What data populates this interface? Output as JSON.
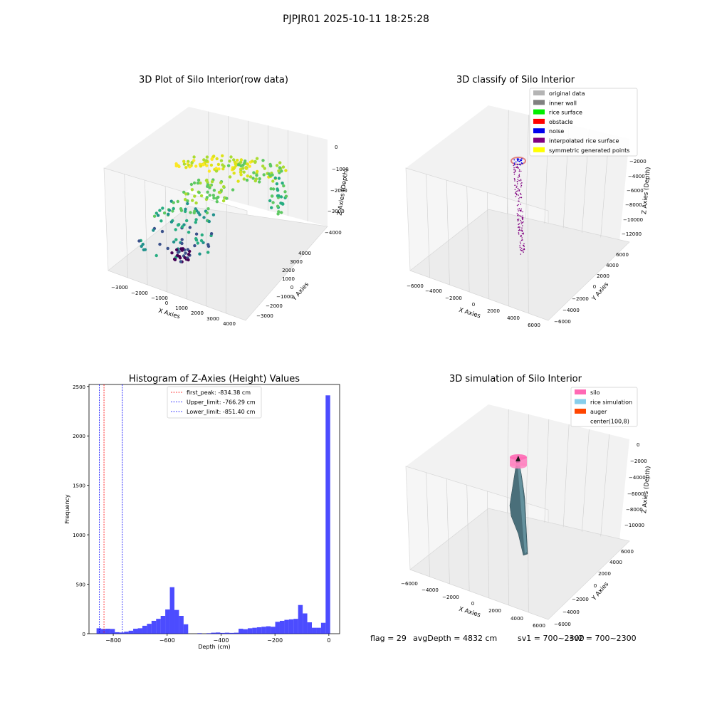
{
  "figure": {
    "suptitle": "PJPJR01 2025-10-11 18:25:28",
    "status": {
      "flag": "flag = 29",
      "avg": "avgDepth = 4832 cm",
      "sv1": "sv1 = 700~2300",
      "sv2": "sv2 = 700~2300"
    }
  },
  "panels": {
    "raw": {
      "title": "3D Plot of Silo Interior(row data)",
      "xlabel": "X Axies",
      "ylabel": "Y Axies",
      "zlabel": "Z Axies (Depth)",
      "xticks": [
        "−3000",
        "−2000",
        "−1000",
        "0",
        "1000",
        "2000",
        "3000",
        "4000"
      ],
      "yticks": [
        "−3000",
        "−2000",
        "−1000",
        "0",
        "1000",
        "2000",
        "3000",
        "4000"
      ],
      "zticks": [
        "0",
        "−1000",
        "−2000",
        "−3000",
        "−4000"
      ]
    },
    "classify": {
      "title": "3D classify of Silo Interior",
      "xlabel": "X Axies",
      "ylabel": "Y Axies",
      "zlabel": "Z Axies (Depth)",
      "xticks": [
        "−6000",
        "−4000",
        "−2000",
        "0",
        "2000",
        "4000",
        "6000"
      ],
      "yticks": [
        "−6000",
        "−4000",
        "−2000",
        "0",
        "2000",
        "4000",
        "6000"
      ],
      "zticks": [
        "−2000",
        "−4000",
        "−6000",
        "−8000",
        "−10000",
        "−12000"
      ],
      "legend": [
        {
          "label": "original data",
          "color": "#b4b4b4"
        },
        {
          "label": "inner wall",
          "color": "#808080"
        },
        {
          "label": "rice surface",
          "color": "#00ee00"
        },
        {
          "label": "obstacle",
          "color": "#ff0000"
        },
        {
          "label": "noise",
          "color": "#0000ee"
        },
        {
          "label": "interpolated rice surface",
          "color": "#800080"
        },
        {
          "label": "symmetric generated points",
          "color": "#ffff00"
        }
      ]
    },
    "hist": {
      "title": "Histogram of Z-Axies (Height) Values",
      "xlabel": "Depth (cm)",
      "ylabel": "Frequency",
      "legend": [
        {
          "label": "first_peak: -834.38 cm",
          "color": "#ff0000"
        },
        {
          "label": "Upper_limit: -766.29 cm",
          "color": "#0000ff"
        },
        {
          "label": "Lower_limit: -851.40 cm",
          "color": "#0000ff"
        }
      ]
    },
    "sim": {
      "title": "3D simulation of Silo Interior",
      "xlabel": "X Axies",
      "ylabel": "Y Axies",
      "zlabel": "Z Axies (Depth)",
      "xticks": [
        "−6000",
        "−4000",
        "−2000",
        "0",
        "2000",
        "4000",
        "6000"
      ],
      "yticks": [
        "−6000",
        "−4000",
        "−2000",
        "0",
        "2000",
        "4000",
        "6000"
      ],
      "zticks": [
        "0",
        "−2000",
        "−4000",
        "−6000",
        "−8000",
        "−10000"
      ],
      "legend": [
        {
          "label": "silo",
          "color": "#ff69b4"
        },
        {
          "label": "rice simulation",
          "color": "#87ceeb"
        },
        {
          "label": "auger",
          "color": "#ff4500"
        },
        {
          "label": "center(100,8)",
          "color": "#ffffff"
        }
      ]
    }
  },
  "chart_data": [
    {
      "type": "scatter",
      "title": "3D Plot of Silo Interior(row data)",
      "xlabel": "X Axies",
      "ylabel": "Y Axies",
      "zlabel": "Z Axies (Depth)",
      "xlim": [
        -3500,
        4500
      ],
      "ylim": [
        -3500,
        4500
      ],
      "zlim": [
        -4500,
        0
      ],
      "colormap": "viridis"
    },
    {
      "type": "scatter",
      "title": "3D classify of Silo Interior",
      "xlabel": "X Axies",
      "ylabel": "Y Axies",
      "zlabel": "Z Axies (Depth)",
      "xlim": [
        -6500,
        6500
      ],
      "ylim": [
        -6500,
        6500
      ],
      "zlim": [
        -12500,
        -1000
      ]
    },
    {
      "type": "bar",
      "title": "Histogram of Z-Axies (Height) Values",
      "xlabel": "Depth (cm)",
      "ylabel": "Frequency",
      "xlim": [
        -890,
        40
      ],
      "ylim": [
        0,
        2520
      ],
      "xticks": [
        -800,
        -600,
        -400,
        -200,
        0
      ],
      "yticks": [
        0,
        500,
        1000,
        1500,
        2000,
        2500
      ],
      "bin_width": 17,
      "bins": [
        {
          "x0": -862,
          "value": 55
        },
        {
          "x0": -845,
          "value": 48
        },
        {
          "x0": -828,
          "value": 50
        },
        {
          "x0": -811,
          "value": 48
        },
        {
          "x0": -794,
          "value": 15
        },
        {
          "x0": -777,
          "value": 12
        },
        {
          "x0": -760,
          "value": 20
        },
        {
          "x0": -743,
          "value": 30
        },
        {
          "x0": -726,
          "value": 50
        },
        {
          "x0": -709,
          "value": 55
        },
        {
          "x0": -692,
          "value": 80
        },
        {
          "x0": -675,
          "value": 100
        },
        {
          "x0": -658,
          "value": 130
        },
        {
          "x0": -641,
          "value": 150
        },
        {
          "x0": -624,
          "value": 180
        },
        {
          "x0": -607,
          "value": 245
        },
        {
          "x0": -590,
          "value": 470
        },
        {
          "x0": -573,
          "value": 240
        },
        {
          "x0": -556,
          "value": 180
        },
        {
          "x0": -539,
          "value": 95
        },
        {
          "x0": -522,
          "value": 0
        },
        {
          "x0": -505,
          "value": 0
        },
        {
          "x0": -488,
          "value": 5
        },
        {
          "x0": -471,
          "value": 0
        },
        {
          "x0": -454,
          "value": 5
        },
        {
          "x0": -437,
          "value": 10
        },
        {
          "x0": -420,
          "value": 12
        },
        {
          "x0": -403,
          "value": 8
        },
        {
          "x0": -386,
          "value": 10
        },
        {
          "x0": -369,
          "value": 8
        },
        {
          "x0": -352,
          "value": 10
        },
        {
          "x0": -335,
          "value": 50
        },
        {
          "x0": -318,
          "value": 45
        },
        {
          "x0": -301,
          "value": 55
        },
        {
          "x0": -284,
          "value": 60
        },
        {
          "x0": -267,
          "value": 65
        },
        {
          "x0": -250,
          "value": 70
        },
        {
          "x0": -233,
          "value": 75
        },
        {
          "x0": -216,
          "value": 70
        },
        {
          "x0": -199,
          "value": 120
        },
        {
          "x0": -182,
          "value": 130
        },
        {
          "x0": -165,
          "value": 140
        },
        {
          "x0": -148,
          "value": 145
        },
        {
          "x0": -131,
          "value": 150
        },
        {
          "x0": -114,
          "value": 290
        },
        {
          "x0": -97,
          "value": 205
        },
        {
          "x0": -80,
          "value": 115
        },
        {
          "x0": -63,
          "value": 60
        },
        {
          "x0": -46,
          "value": 60
        },
        {
          "x0": -29,
          "value": 110
        },
        {
          "x0": -12,
          "value": 2410
        }
      ],
      "vlines": [
        {
          "name": "first_peak",
          "x": -834.38,
          "color": "#ff0000"
        },
        {
          "name": "Upper_limit",
          "x": -766.29,
          "color": "#0000ff"
        },
        {
          "name": "Lower_limit",
          "x": -851.4,
          "color": "#0000ff"
        }
      ]
    },
    {
      "type": "scatter",
      "title": "3D simulation of Silo Interior",
      "xlabel": "X Axies",
      "ylabel": "Y Axies",
      "zlabel": "Z Axies (Depth)",
      "xlim": [
        -6500,
        6500
      ],
      "ylim": [
        -6500,
        6500
      ],
      "zlim": [
        -11500,
        500
      ]
    }
  ]
}
